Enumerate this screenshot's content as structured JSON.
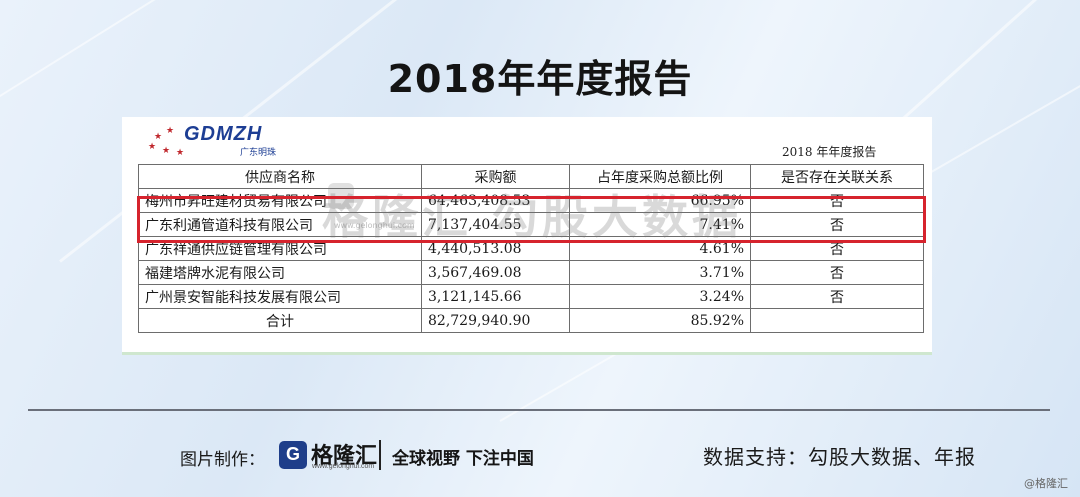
{
  "page": {
    "title": "2018年年度报告"
  },
  "document": {
    "logo_text": "GDMZH",
    "logo_subtext": "广东明珠",
    "report_label": "2018 年年度报告",
    "watermark": {
      "main": "格隆汇  勾股大数据",
      "domain": "www.gelonghui.com"
    },
    "table": {
      "headers": [
        "供应商名称",
        "采购额",
        "占年度采购总额比例",
        "是否存在关联关系"
      ],
      "rows": [
        {
          "name": "梅州市昇旺建材贸易有限公司",
          "amount": "64,463,408.53",
          "ratio": "66.95%",
          "related": "否"
        },
        {
          "name": "广东利通管道科技有限公司",
          "amount": "7,137,404.55",
          "ratio": "7.41%",
          "related": "否"
        },
        {
          "name": "广东祥通供应链管理有限公司",
          "amount": "4,440,513.08",
          "ratio": "4.61%",
          "related": "否"
        },
        {
          "name": "福建塔牌水泥有限公司",
          "amount": "3,567,469.08",
          "ratio": "3.71%",
          "related": "否"
        },
        {
          "name": "广州景安智能科技发展有限公司",
          "amount": "3,121,145.66",
          "ratio": "3.24%",
          "related": "否"
        }
      ],
      "total": {
        "label": "合计",
        "amount": "82,729,940.90",
        "ratio": "85.92%",
        "related": ""
      }
    },
    "highlight_color": "#d6232d"
  },
  "footer": {
    "made_by_label": "图片制作：",
    "brand_icon": "G",
    "brand_name": "格隆汇",
    "brand_domain": "www.gelonghui.com",
    "slogan": "全球视野 下注中国",
    "data_support": "数据支持：勾股大数据、年报",
    "corner_mark": "@格隆汇"
  }
}
